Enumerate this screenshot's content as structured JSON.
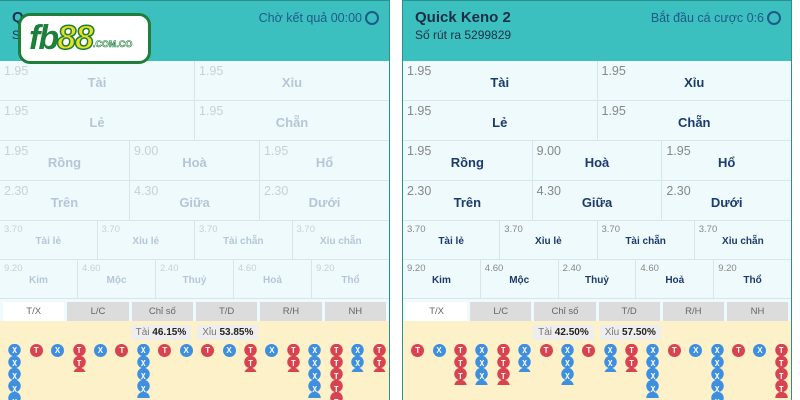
{
  "logo": {
    "text": "fb88.com.co"
  },
  "panels": [
    {
      "title": "Q",
      "draw": "S",
      "status": "Chờ kết quả 00:00",
      "status_icon": "timer-icon",
      "disabled": true,
      "stats": {
        "tai_label": "Tài",
        "tai": "46.15%",
        "xiu_label": "Xỉu",
        "xiu": "53.85%"
      },
      "beads": [
        "XXXXX",
        "T",
        "X",
        "TT",
        "X",
        "T",
        "XXXX",
        "T",
        "X",
        "T",
        "X",
        "TT",
        "X",
        "TT",
        "XXXX",
        "TTTTT",
        "XX",
        "TT"
      ]
    },
    {
      "title": "Quick Keno 2",
      "draw": "Số rút ra 5299829",
      "status": "Bắt đầu cá cược 0:6",
      "status_icon": "alarm-clock-icon",
      "disabled": false,
      "stats": {
        "tai_label": "Tài",
        "tai": "42.50%",
        "xiu_label": "Xỉu",
        "xiu": "57.50%"
      },
      "beads": [
        "T",
        "X",
        "TTT",
        "XXX",
        "TTT",
        "XX",
        "T",
        "XXX",
        "T",
        "XX",
        "TT",
        "XXXX",
        "T",
        "X",
        "XXXXX",
        "T",
        "X",
        "TTTT"
      ]
    }
  ],
  "bet_rows": [
    [
      {
        "odd": "1.95",
        "label": "Tài"
      },
      {
        "odd": "1.95",
        "label": "Xỉu"
      }
    ],
    [
      {
        "odd": "1.95",
        "label": "Lẻ"
      },
      {
        "odd": "1.95",
        "label": "Chẵn"
      }
    ],
    [
      {
        "odd": "1.95",
        "label": "Rồng"
      },
      {
        "odd": "9.00",
        "label": "Hoà"
      },
      {
        "odd": "1.95",
        "label": "Hổ"
      }
    ],
    [
      {
        "odd": "2.30",
        "label": "Trên"
      },
      {
        "odd": "4.30",
        "label": "Giữa"
      },
      {
        "odd": "2.30",
        "label": "Dưới"
      }
    ],
    [
      {
        "odd": "3.70",
        "label": "Tài lẻ"
      },
      {
        "odd": "3.70",
        "label": "Xỉu lẻ"
      },
      {
        "odd": "3.70",
        "label": "Tài chẵn"
      },
      {
        "odd": "3.70",
        "label": "Xỉu chẵn"
      }
    ],
    [
      {
        "odd": "9.20",
        "label": "Kim"
      },
      {
        "odd": "4.60",
        "label": "Mộc"
      },
      {
        "odd": "2.40",
        "label": "Thuỷ"
      },
      {
        "odd": "4.60",
        "label": "Hoả"
      },
      {
        "odd": "9.20",
        "label": "Thổ"
      }
    ]
  ],
  "tabs": [
    "T/X",
    "L/C",
    "Chỉ số",
    "T/D",
    "R/H",
    "NH"
  ],
  "active_tab": "T/X",
  "bead_letters": {
    "T": "T",
    "X": "X"
  },
  "colors": {
    "header": "#3cbfbf",
    "tai": "#d9434f",
    "xiu": "#3f8fe0",
    "road_bg": "#fcf1c9"
  }
}
